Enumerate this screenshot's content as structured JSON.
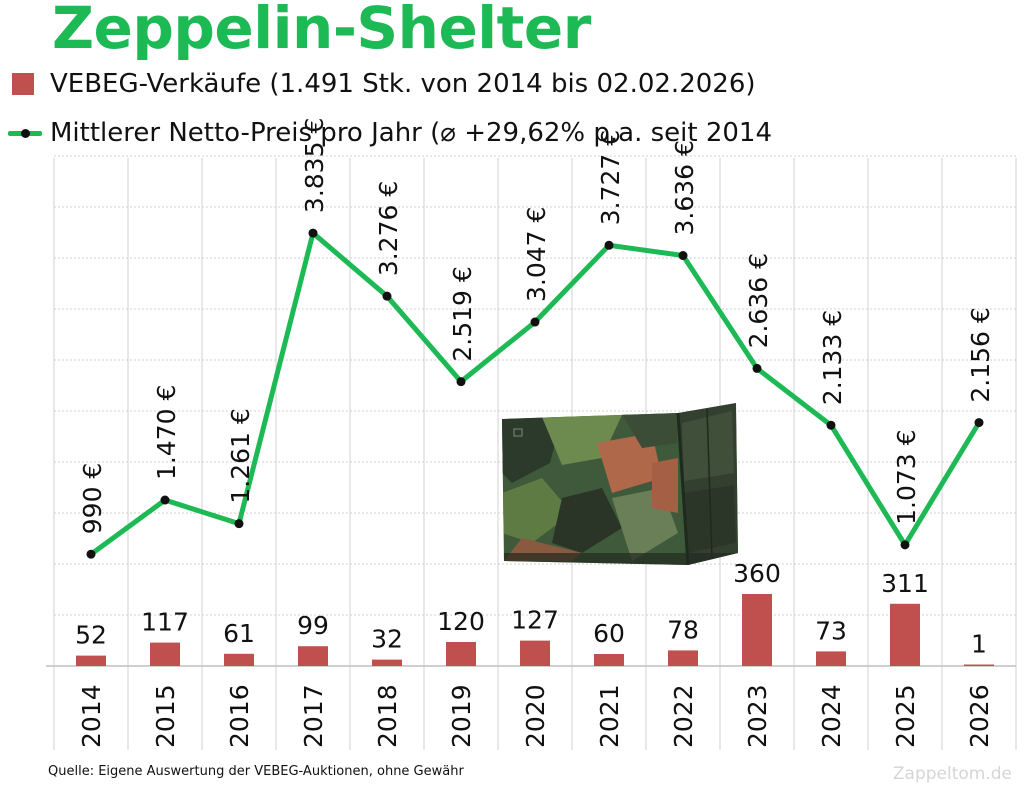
{
  "title": "Zeppelin-Shelter",
  "legend": {
    "bars": "VEBEG-Verkäufe (1.491 Stk. von 2014 bis 02.02.2026)",
    "line": "Mittlerer Netto-Preis pro Jahr (⌀ +29,62% p.a. seit 2014"
  },
  "source": "Quelle: Eigene Auswertung der VEBEG-Auktionen, ohne Gewähr",
  "watermark": "Zappeltom.de",
  "colors": {
    "title": "#1db954",
    "line": "#1db954",
    "bars": "#c0504d",
    "grid": "#d0d0d0"
  },
  "chart_data": {
    "type": "bar+line",
    "categories": [
      "2014",
      "2015",
      "2016",
      "2017",
      "2018",
      "2019",
      "2020",
      "2021",
      "2022",
      "2023",
      "2024",
      "2025",
      "2026"
    ],
    "series": [
      {
        "name": "VEBEG-Verkäufe",
        "type": "bar",
        "values": [
          52,
          117,
          61,
          99,
          32,
          120,
          127,
          60,
          78,
          360,
          73,
          311,
          1
        ],
        "labels": [
          "52",
          "117",
          "61",
          "99",
          "32",
          "120",
          "127",
          "60",
          "78",
          "360",
          "73",
          "311",
          "1"
        ]
      },
      {
        "name": "Mittlerer Netto-Preis pro Jahr",
        "type": "line",
        "values": [
          990,
          1470,
          1261,
          3835,
          3276,
          2519,
          3047,
          3727,
          3636,
          2636,
          2133,
          1073,
          2156
        ],
        "labels": [
          "990 €",
          "1.470 €",
          "1.261 €",
          "3.835 €",
          "3.276 €",
          "2.519 €",
          "3.047 €",
          "3.727 €",
          "3.636 €",
          "2.636 €",
          "2.133 €",
          "1.073 €",
          "2.156 €"
        ]
      }
    ],
    "title": "Zeppelin-Shelter",
    "xlabel": "",
    "ylabel": "",
    "grid": true,
    "legend_position": "top-left"
  }
}
